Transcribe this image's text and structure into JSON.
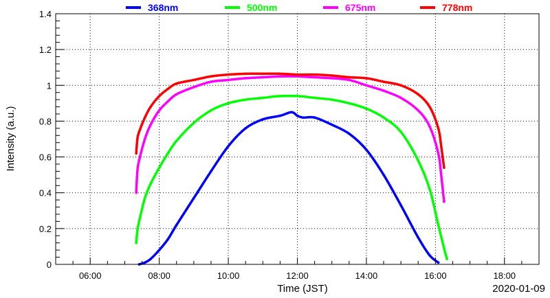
{
  "chart_data": {
    "type": "scatter",
    "xlabel": "Time (JST)",
    "ylabel": "Intensity (a.u.)",
    "date_label": "2020-01-09",
    "xlim": [
      "05:00",
      "19:00"
    ],
    "ylim": [
      0,
      1.4
    ],
    "x_ticks": [
      "06:00",
      "08:00",
      "10:00",
      "12:00",
      "14:00",
      "16:00",
      "18:00"
    ],
    "y_ticks": [
      "0",
      "0.2",
      "0.4",
      "0.6",
      "0.8",
      "1",
      "1.2",
      "1.4"
    ],
    "grid": true,
    "legend_position": "top",
    "series": [
      {
        "name": "368nm",
        "color": "#0000ff",
        "x": [
          "07:25",
          "07:35",
          "07:45",
          "08:00",
          "08:15",
          "08:30",
          "09:00",
          "09:30",
          "10:00",
          "10:30",
          "11:00",
          "11:30",
          "11:50",
          "12:00",
          "12:10",
          "12:30",
          "13:00",
          "13:30",
          "14:00",
          "14:30",
          "15:00",
          "15:30",
          "15:50",
          "16:05"
        ],
        "values": [
          0.0,
          0.01,
          0.03,
          0.08,
          0.14,
          0.22,
          0.37,
          0.52,
          0.66,
          0.76,
          0.81,
          0.83,
          0.85,
          0.83,
          0.82,
          0.82,
          0.78,
          0.73,
          0.64,
          0.5,
          0.33,
          0.15,
          0.05,
          0.01
        ]
      },
      {
        "name": "500nm",
        "color": "#00ff00",
        "x": [
          "07:20",
          "07:22",
          "07:25",
          "07:35",
          "07:45",
          "08:00",
          "08:15",
          "08:30",
          "09:00",
          "09:30",
          "10:00",
          "10:30",
          "11:00",
          "11:30",
          "12:00",
          "12:30",
          "13:00",
          "13:30",
          "14:00",
          "14:30",
          "15:00",
          "15:30",
          "15:50",
          "16:05",
          "16:15",
          "16:20"
        ],
        "values": [
          0.12,
          0.19,
          0.24,
          0.37,
          0.45,
          0.54,
          0.62,
          0.69,
          0.79,
          0.86,
          0.9,
          0.92,
          0.93,
          0.94,
          0.94,
          0.93,
          0.92,
          0.9,
          0.87,
          0.82,
          0.74,
          0.58,
          0.42,
          0.22,
          0.09,
          0.03
        ]
      },
      {
        "name": "675nm",
        "color": "#ff00ff",
        "x": [
          "07:20",
          "07:22",
          "07:25",
          "07:35",
          "07:45",
          "08:00",
          "08:15",
          "08:30",
          "09:00",
          "09:30",
          "10:00",
          "10:30",
          "11:00",
          "11:30",
          "12:00",
          "12:30",
          "13:00",
          "13:30",
          "14:00",
          "14:30",
          "15:00",
          "15:30",
          "15:50",
          "16:05",
          "16:10",
          "16:15"
        ],
        "values": [
          0.4,
          0.52,
          0.58,
          0.7,
          0.78,
          0.86,
          0.91,
          0.95,
          0.99,
          1.02,
          1.03,
          1.04,
          1.045,
          1.05,
          1.05,
          1.045,
          1.04,
          1.03,
          1.0,
          0.97,
          0.93,
          0.86,
          0.77,
          0.62,
          0.5,
          0.35
        ]
      },
      {
        "name": "778nm",
        "color": "#ff0000",
        "x": [
          "07:20",
          "07:22",
          "07:25",
          "07:35",
          "07:45",
          "08:00",
          "08:15",
          "08:30",
          "09:00",
          "09:30",
          "10:00",
          "10:30",
          "11:00",
          "11:30",
          "12:00",
          "12:30",
          "13:00",
          "13:30",
          "14:00",
          "14:30",
          "15:00",
          "15:30",
          "15:50",
          "16:05",
          "16:10",
          "16:15"
        ],
        "values": [
          0.62,
          0.7,
          0.74,
          0.82,
          0.88,
          0.94,
          0.98,
          1.01,
          1.03,
          1.05,
          1.06,
          1.065,
          1.065,
          1.065,
          1.06,
          1.06,
          1.055,
          1.045,
          1.04,
          1.02,
          1.0,
          0.95,
          0.88,
          0.76,
          0.66,
          0.54
        ]
      }
    ]
  }
}
